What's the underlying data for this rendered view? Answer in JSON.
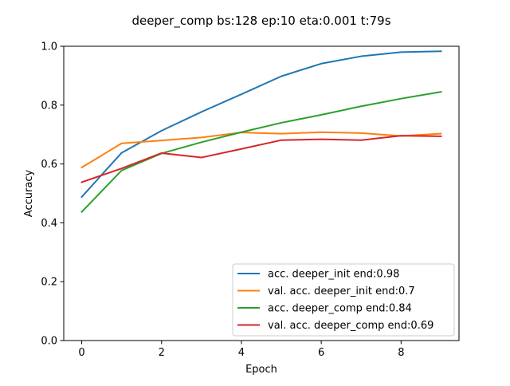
{
  "chart_data": {
    "type": "line",
    "title": "deeper_comp bs:128 ep:10 eta:0.001 t:79s",
    "xlabel": "Epoch",
    "ylabel": "Accuracy",
    "x": [
      0,
      1,
      2,
      3,
      4,
      5,
      6,
      7,
      8,
      9
    ],
    "xlim": [
      -0.45,
      9.45
    ],
    "ylim": [
      0.0,
      1.0
    ],
    "xticks": [
      0,
      2,
      4,
      6,
      8
    ],
    "yticks": [
      0.0,
      0.2,
      0.4,
      0.6,
      0.8,
      1.0
    ],
    "xtick_labels": [
      "0",
      "2",
      "4",
      "6",
      "8"
    ],
    "ytick_labels": [
      "0.0",
      "0.2",
      "0.4",
      "0.6",
      "0.8",
      "1.0"
    ],
    "grid": false,
    "legend_position": "lower-right",
    "series": [
      {
        "name": "acc. deeper_init  end:0.98",
        "color": "#1f77b4",
        "values": [
          0.488,
          0.638,
          0.713,
          0.777,
          0.837,
          0.898,
          0.941,
          0.966,
          0.98,
          0.983
        ]
      },
      {
        "name": "val. acc. deeper_init  end:0.7",
        "color": "#ff7f0e",
        "values": [
          0.588,
          0.67,
          0.68,
          0.69,
          0.707,
          0.703,
          0.708,
          0.705,
          0.695,
          0.703
        ]
      },
      {
        "name": "acc. deeper_comp  end:0.84",
        "color": "#2ca02c",
        "values": [
          0.437,
          0.578,
          0.636,
          0.674,
          0.708,
          0.74,
          0.767,
          0.796,
          0.822,
          0.845
        ]
      },
      {
        "name": "val. acc. deeper_comp  end:0.69",
        "color": "#d62728",
        "values": [
          0.538,
          0.585,
          0.637,
          0.622,
          0.651,
          0.681,
          0.684,
          0.681,
          0.696,
          0.694
        ]
      }
    ]
  }
}
